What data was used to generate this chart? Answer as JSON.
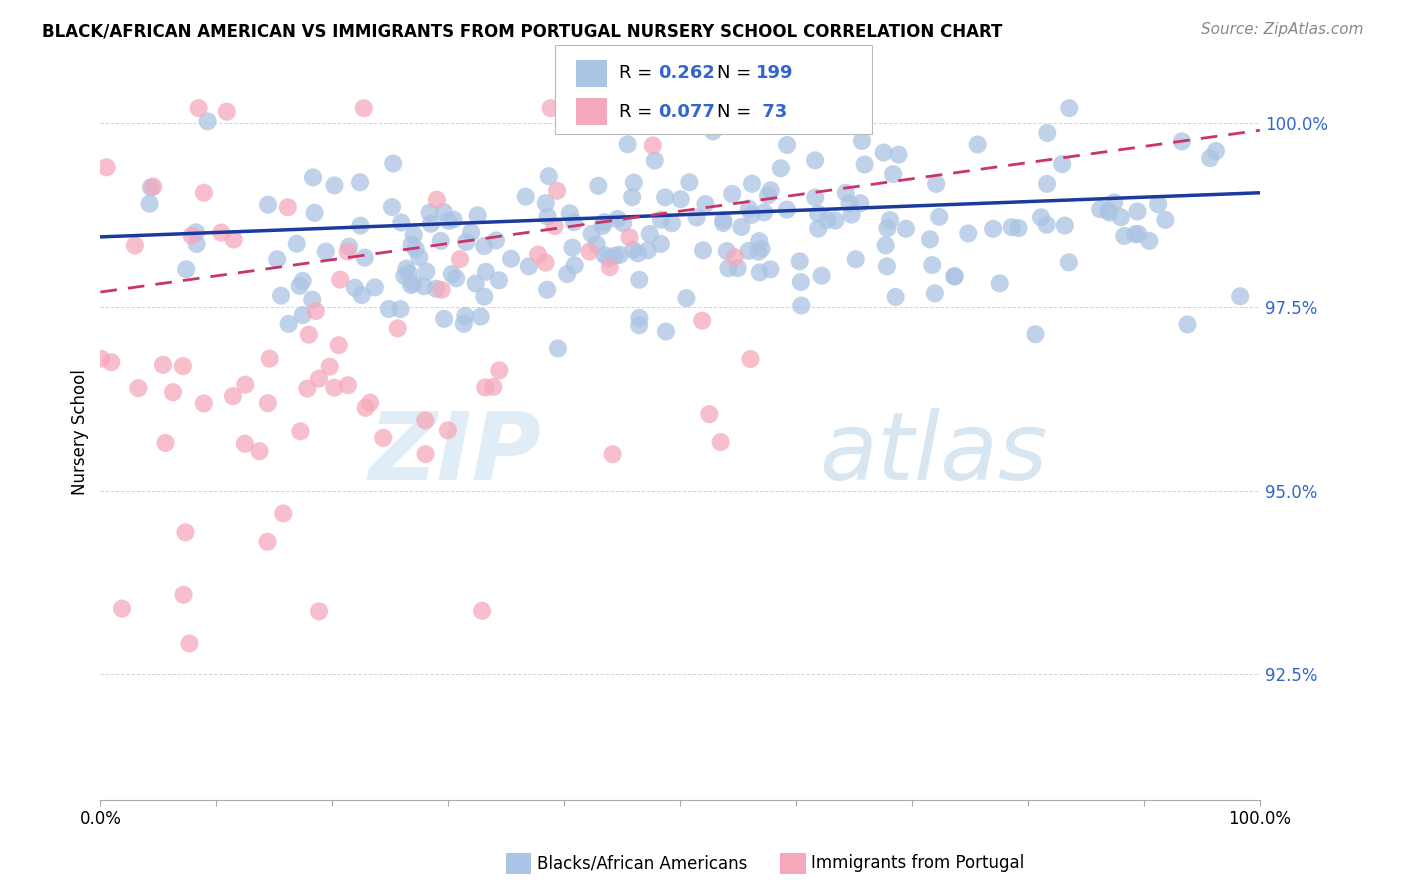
{
  "title": "BLACK/AFRICAN AMERICAN VS IMMIGRANTS FROM PORTUGAL NURSERY SCHOOL CORRELATION CHART",
  "source": "Source: ZipAtlas.com",
  "ylabel": "Nursery School",
  "ytick_values": [
    0.925,
    0.95,
    0.975,
    1.0
  ],
  "ytick_labels": [
    "92.5%",
    "95.0%",
    "97.5%",
    "100.0%"
  ],
  "xlim": [
    0.0,
    1.0
  ],
  "ylim": [
    0.908,
    1.008
  ],
  "blue_R": 0.262,
  "blue_N": 199,
  "pink_R": 0.077,
  "pink_N": 73,
  "blue_color": "#aac4e4",
  "pink_color": "#f5a8bc",
  "blue_line_color": "#1a3a9c",
  "pink_line_color": "#cc3366",
  "watermark_zip": "ZIP",
  "watermark_atlas": "atlas",
  "legend_label_blue": "Blacks/African Americans",
  "legend_label_pink": "Immigrants from Portugal",
  "background_color": "#ffffff",
  "grid_color": "#cccccc",
  "title_fontsize": 12,
  "source_fontsize": 11,
  "tick_fontsize": 12,
  "ylabel_fontsize": 12
}
